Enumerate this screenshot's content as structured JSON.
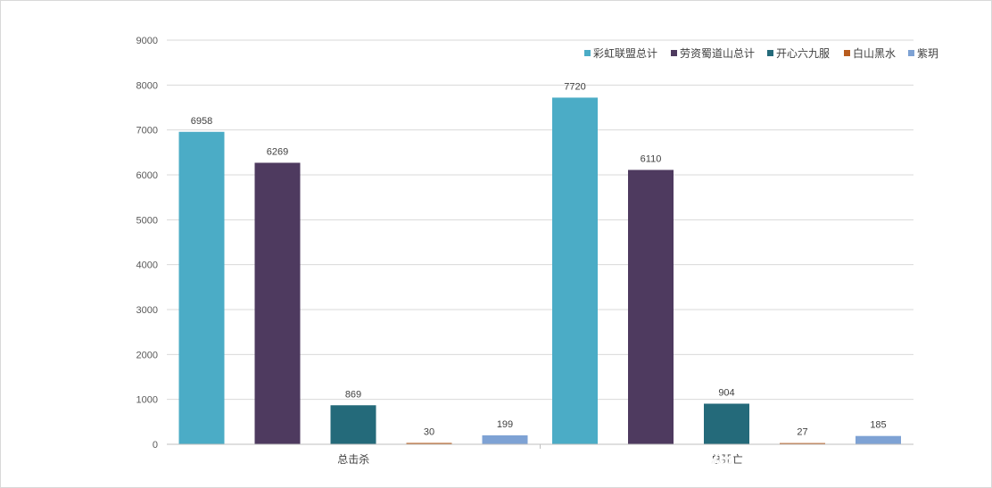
{
  "chart_data": {
    "type": "bar",
    "categories": [
      "总击杀",
      "总死亡"
    ],
    "series": [
      {
        "name": "彩虹联盟总计",
        "values": [
          6958,
          7720
        ],
        "color": "#4BACC6"
      },
      {
        "name": "劳资蜀道山总计",
        "values": [
          6269,
          6110
        ],
        "color": "#4E3A5F"
      },
      {
        "name": "开心六九服",
        "values": [
          869,
          904
        ],
        "color": "#246A7A"
      },
      {
        "name": "白山黑水",
        "values": [
          30,
          27
        ],
        "color": "#B85C1E"
      },
      {
        "name": "紫玥",
        "values": [
          199,
          185
        ],
        "color": "#7EA2D4"
      }
    ],
    "yticks": [
      0,
      1000,
      2000,
      3000,
      4000,
      5000,
      6000,
      7000,
      8000,
      9000
    ],
    "ylim": [
      0,
      9000
    ],
    "grid": true,
    "legend": "top-right",
    "title": "",
    "xlabel": "",
    "ylabel": ""
  },
  "watermark": "大神 @军机处-思念"
}
